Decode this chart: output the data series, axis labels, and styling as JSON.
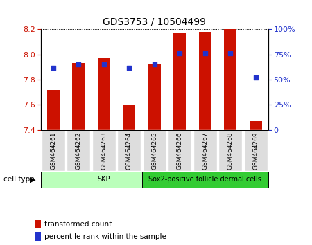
{
  "title": "GDS3753 / 10504499",
  "samples": [
    "GSM464261",
    "GSM464262",
    "GSM464263",
    "GSM464264",
    "GSM464265",
    "GSM464266",
    "GSM464267",
    "GSM464268",
    "GSM464269"
  ],
  "bar_tops": [
    7.72,
    7.93,
    7.97,
    7.6,
    7.92,
    8.17,
    8.18,
    8.2,
    7.47
  ],
  "bar_bottom": 7.4,
  "percentile_values": [
    62,
    65,
    65,
    62,
    65,
    76,
    76,
    76,
    52
  ],
  "ylim_left": [
    7.4,
    8.2
  ],
  "ylim_right": [
    0,
    100
  ],
  "yticks_left": [
    7.4,
    7.6,
    7.8,
    8.0,
    8.2
  ],
  "yticks_right": [
    0,
    25,
    50,
    75,
    100
  ],
  "bar_color": "#cc1100",
  "dot_color": "#2233cc",
  "cell_groups": [
    {
      "label": "SKP",
      "start": 0,
      "end": 4,
      "color": "#bbffbb"
    },
    {
      "label": "Sox2-positive follicle dermal cells",
      "start": 4,
      "end": 8,
      "color": "#33cc33"
    }
  ],
  "cell_type_label": "cell type",
  "legend_items": [
    {
      "label": "transformed count",
      "color": "#cc1100"
    },
    {
      "label": "percentile rank within the sample",
      "color": "#2233cc"
    }
  ],
  "bar_width": 0.5,
  "label_color_left": "#cc1100",
  "label_color_right": "#2233cc",
  "grid_linestyle": "dotted",
  "grid_color": "black",
  "grid_linewidth": 0.7
}
